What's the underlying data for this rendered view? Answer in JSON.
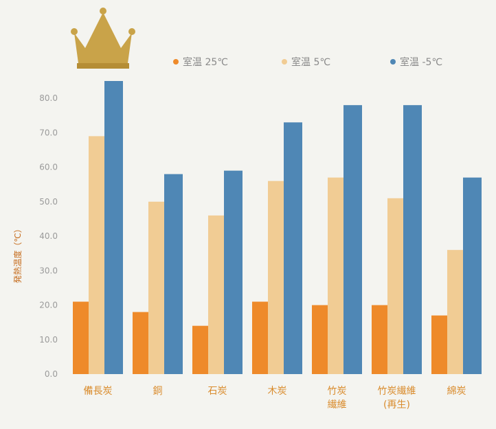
{
  "chart_data": {
    "type": "bar",
    "title": "",
    "ylabel": "発熱温度（℃）",
    "ylim": [
      0,
      85
    ],
    "y_ticks": [
      0,
      10,
      20,
      30,
      40,
      50,
      60,
      70,
      80
    ],
    "y_tick_labels": [
      "0.0",
      "10.0",
      "20.0",
      "30.0",
      "40.0",
      "50.0",
      "60.0",
      "70.0",
      "80.0"
    ],
    "categories": [
      "備長炭",
      "銅",
      "石炭",
      "木炭",
      "竹炭 繊維",
      "竹炭繊維 (再生)",
      "綿炭"
    ],
    "categories_display": [
      [
        "備長炭"
      ],
      [
        "銅"
      ],
      [
        "石炭"
      ],
      [
        "木炭"
      ],
      [
        "竹炭",
        "繊維"
      ],
      [
        "竹炭繊維",
        "(再生)"
      ],
      [
        "綿炭"
      ]
    ],
    "series": [
      {
        "name": "室温 25℃",
        "color": "#ee8a2a",
        "values": [
          21,
          18,
          14,
          21,
          20,
          20,
          17
        ]
      },
      {
        "name": "室温 5℃",
        "color": "#f1cc94",
        "values": [
          69,
          50,
          46,
          56,
          57,
          51,
          36
        ]
      },
      {
        "name": "室温 -5℃",
        "color": "#4f87b5",
        "values": [
          85,
          58,
          59,
          73,
          78,
          78,
          57
        ]
      }
    ],
    "legend_position": "top-right",
    "grid": false
  },
  "decor": {
    "crown_icon": "crown-icon",
    "crown_color": "#c9a349"
  }
}
